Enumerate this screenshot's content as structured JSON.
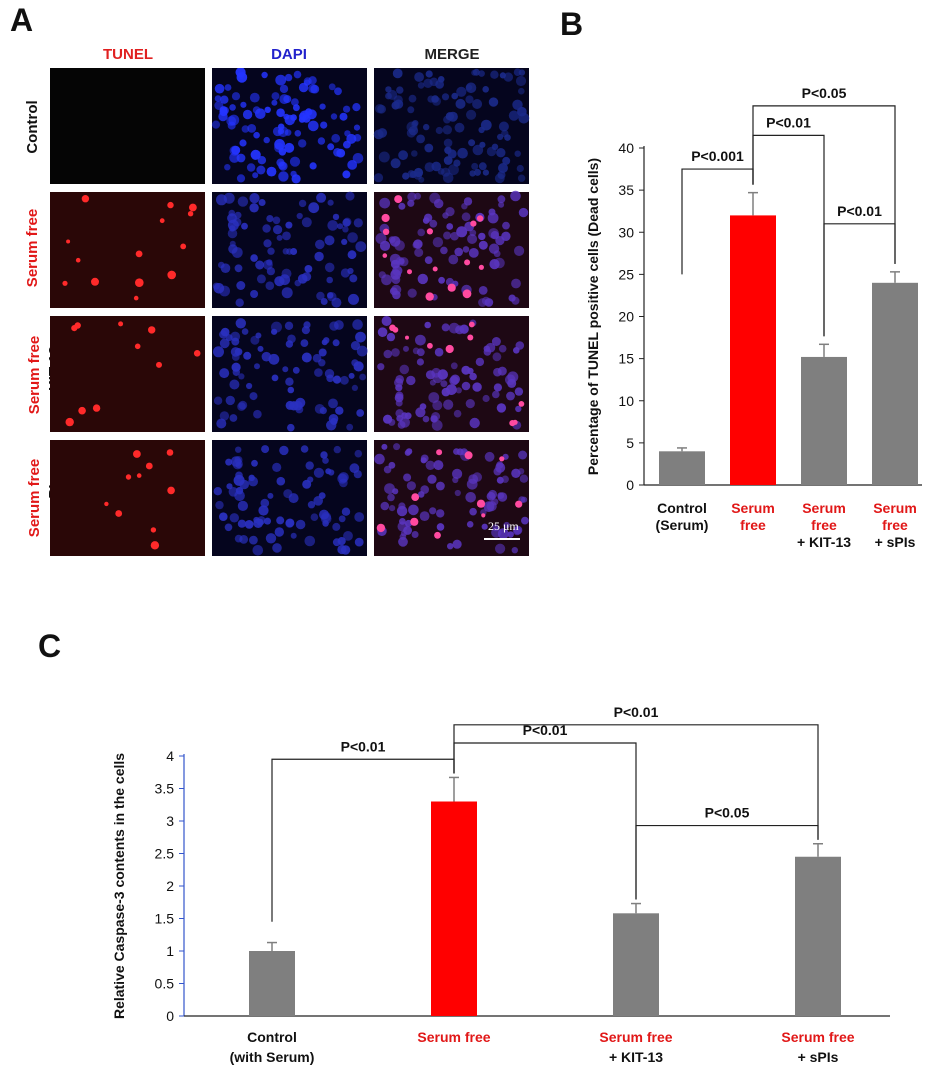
{
  "panel_a": {
    "letter": "A",
    "columns": [
      {
        "label": "TUNEL",
        "color": "#e02020"
      },
      {
        "label": "DAPI",
        "color": "#2222cc"
      },
      {
        "label": "MERGE",
        "color": "#222222"
      }
    ],
    "rows": [
      {
        "line1": "Control",
        "line2": ""
      },
      {
        "line1": "Serum free",
        "line2": ""
      },
      {
        "line1": "Serum free",
        "line2": "+ KIT-13"
      },
      {
        "line1": "Serum free",
        "line2": "+ sPIs"
      }
    ],
    "scale_bar": "25 μm"
  },
  "chart_data": [
    {
      "panel": "B",
      "type": "bar",
      "ylabel": "Percentage of TUNEL positive cells (Dead cells)",
      "ylim": [
        0,
        40
      ],
      "yticks": [
        0,
        5,
        10,
        15,
        20,
        25,
        30,
        35,
        40
      ],
      "categories": [
        {
          "line1": "Control",
          "line2": "(Serum)",
          "line3": "",
          "color": "#111111"
        },
        {
          "line1": "Serum",
          "line2": "free",
          "line3": "",
          "color": "#e11818"
        },
        {
          "line1": "Serum",
          "line2": "free",
          "line3": "+ KIT-13",
          "color": "#e11818"
        },
        {
          "line1": "Serum",
          "line2": "free",
          "line3": "+ sPIs",
          "color": "#e11818"
        }
      ],
      "values": [
        4.0,
        32.0,
        15.2,
        24.0
      ],
      "errors": [
        0.4,
        2.7,
        1.5,
        1.3
      ],
      "bar_colors": [
        "#7f7f7f",
        "#ff0000",
        "#7f7f7f",
        "#7f7f7f"
      ],
      "annotations": [
        {
          "label": "P<0.001",
          "from": 0,
          "to": 1,
          "level": 37.5
        },
        {
          "label": "P<0.01",
          "from": 1,
          "to": 2,
          "level": 41.5
        },
        {
          "label": "P<0.05",
          "from": 1,
          "to": 3,
          "level": 45.0
        },
        {
          "label": "P<0.01",
          "from": 2,
          "to": 3,
          "level": 31.0
        }
      ]
    },
    {
      "panel": "C",
      "type": "bar",
      "ylabel": "Relative Caspase-3 contents in the cells",
      "ylim": [
        0,
        4
      ],
      "yticks": [
        "0",
        "0.5",
        "1",
        "1.5",
        "2",
        "2.5",
        "3",
        "3.5",
        "4"
      ],
      "categories": [
        {
          "line1": "Control",
          "line2": "(with Serum)",
          "color1": "#111111",
          "color2": "#111111"
        },
        {
          "line1": "Serum free",
          "line2": "",
          "color1": "#e11818",
          "color2": "#111111"
        },
        {
          "line1": "Serum free",
          "line2": "+ KIT-13",
          "color1": "#e11818",
          "color2": "#111111"
        },
        {
          "line1": "Serum free",
          "line2": "+ sPIs",
          "color1": "#e11818",
          "color2": "#111111"
        }
      ],
      "values": [
        1.0,
        3.3,
        1.58,
        2.45
      ],
      "errors": [
        0.13,
        0.37,
        0.15,
        0.2
      ],
      "bar_colors": [
        "#7f7f7f",
        "#ff0000",
        "#7f7f7f",
        "#7f7f7f"
      ],
      "annotations": [
        {
          "label": "P<0.01",
          "from": 0,
          "to": 1,
          "level": 3.95
        },
        {
          "label": "P<0.01",
          "from": 1,
          "to": 2,
          "level": 4.2
        },
        {
          "label": "P<0.01",
          "from": 1,
          "to": 3,
          "level": 4.48
        },
        {
          "label": "P<0.05",
          "from": 2,
          "to": 3,
          "level": 2.93
        }
      ]
    }
  ]
}
